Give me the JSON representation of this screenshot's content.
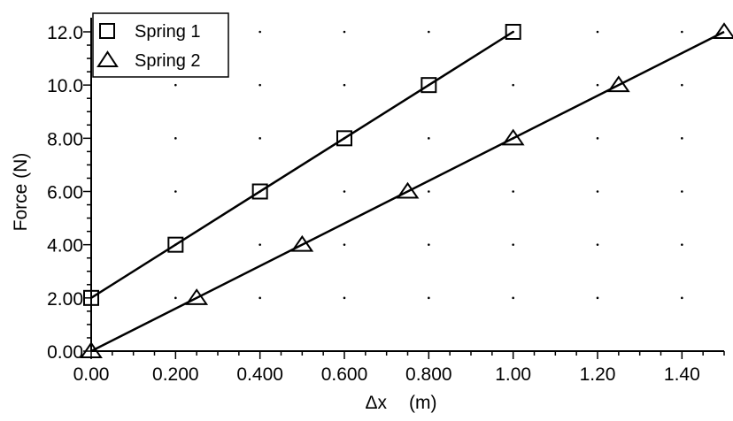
{
  "chart_data": {
    "type": "line",
    "title": "",
    "xlabel": "Δx (m)",
    "xlabel_parts": {
      "symbol": "Δx",
      "unit": "(m)"
    },
    "ylabel": "Force (N)",
    "xlim": [
      0,
      1.5
    ],
    "ylim": [
      0,
      12.0
    ],
    "x_ticks": [
      0.0,
      0.2,
      0.4,
      0.6,
      0.8,
      1.0,
      1.2,
      1.4
    ],
    "x_tick_labels": [
      "0.00",
      "0.200",
      "0.400",
      "0.600",
      "0.800",
      "1.00",
      "1.20",
      "1.40"
    ],
    "y_ticks": [
      0,
      2,
      4,
      6,
      8,
      10,
      12
    ],
    "y_tick_labels": [
      "0.00",
      "2.00",
      "4.00",
      "6.00",
      "8.00",
      "10.0",
      "12.0"
    ],
    "grid": "dotted",
    "legend": "top-left",
    "series": [
      {
        "name": "Spring 1",
        "marker": "square",
        "x": [
          0.0,
          0.2,
          0.4,
          0.6,
          0.8,
          1.0
        ],
        "y": [
          2,
          4,
          6,
          8,
          10,
          12
        ],
        "fit_line": {
          "x": [
            0.0,
            1.0
          ],
          "y": [
            2,
            12
          ]
        }
      },
      {
        "name": "Spring 2",
        "marker": "triangle",
        "x": [
          0.0,
          0.25,
          0.5,
          0.75,
          1.0,
          1.25,
          1.5
        ],
        "y": [
          0,
          2,
          4,
          6,
          8,
          10,
          12
        ],
        "fit_line": {
          "x": [
            0.0,
            1.5
          ],
          "y": [
            0,
            12
          ]
        }
      }
    ]
  }
}
